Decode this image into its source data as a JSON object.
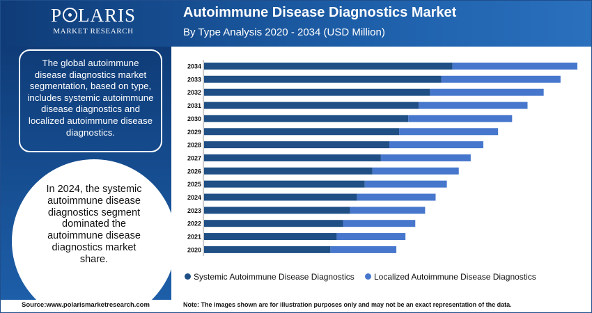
{
  "logo": {
    "name_left": "P",
    "name_right": "LARIS",
    "tagline": "MARKET RESEARCH"
  },
  "header": {
    "title": "Autoimmune Disease Diagnostics Market",
    "subtitle": "By Type Analysis 2020 - 2034 (USD Million)"
  },
  "sidebar": {
    "info": "The global autoimmune disease diagnostics market segmentation, based on type, includes systemic autoimmune disease diagnostics and localized autoimmune disease diagnostics.",
    "highlight": "In 2024, the systemic autoimmune disease diagnostics segment dominated the autoimmune disease diagnostics market share."
  },
  "footer": {
    "source": "Source:www.polarismarketresearch.com",
    "note": "Note: The images shown are for illustration purposes only and may not be an exact representation of the data."
  },
  "colors": {
    "systemic": "#1f4f85",
    "localized": "#4677cc",
    "brand": "#1d5ea8"
  },
  "chart_data": {
    "type": "bar",
    "orientation": "horizontal",
    "stacked": true,
    "categories": [
      "2034",
      "2033",
      "2032",
      "2031",
      "2030",
      "2029",
      "2028",
      "2027",
      "2026",
      "2025",
      "2024",
      "2023",
      "2022",
      "2021",
      "2020"
    ],
    "series": [
      {
        "name": "Systemic Autoimmune Disease Diagnostics",
        "values": [
          354,
          338,
          322,
          306,
          291,
          278,
          264,
          252,
          240,
          229,
          218,
          208,
          198,
          189,
          180
        ]
      },
      {
        "name": "Localized Autoimmune Disease Diagnostics",
        "values": [
          178,
          170,
          162,
          155,
          148,
          141,
          134,
          128,
          123,
          117,
          112,
          107,
          103,
          98,
          94
        ]
      }
    ],
    "title": "Autoimmune Disease Diagnostics Market",
    "xlabel": "",
    "ylabel": "",
    "xlim": [
      0,
      532
    ],
    "grid": false,
    "legend": "bottom"
  }
}
